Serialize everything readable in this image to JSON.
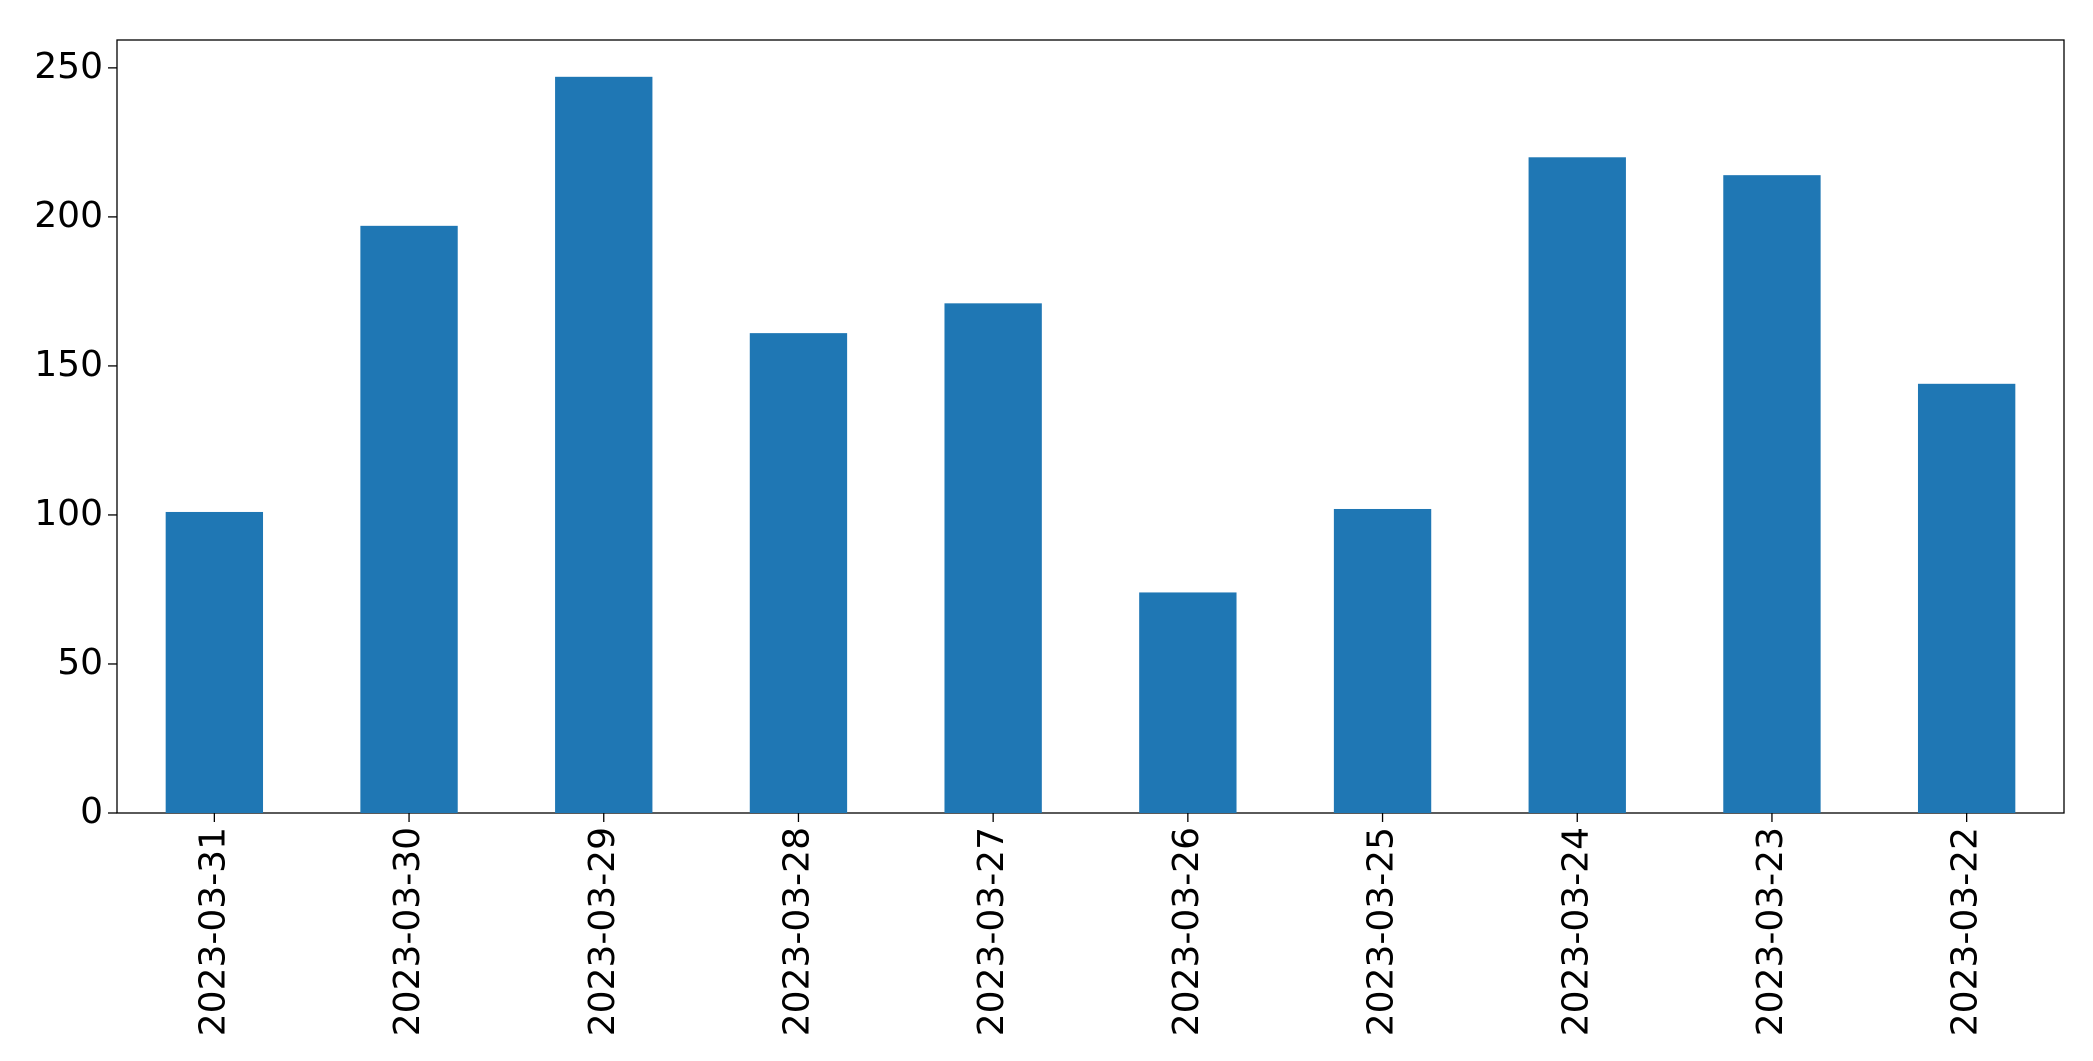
{
  "chart_data": {
    "type": "bar",
    "categories": [
      "2023-03-31",
      "2023-03-30",
      "2023-03-29",
      "2023-03-28",
      "2023-03-27",
      "2023-03-26",
      "2023-03-25",
      "2023-03-24",
      "2023-03-23",
      "2023-03-22"
    ],
    "values": [
      101,
      197,
      247,
      161,
      171,
      74,
      102,
      220,
      214,
      144
    ],
    "color": "#1f77b4",
    "ylim": [
      0,
      259.35
    ],
    "yticks": [
      0,
      50,
      100,
      150,
      200,
      250
    ],
    "grid": false
  }
}
